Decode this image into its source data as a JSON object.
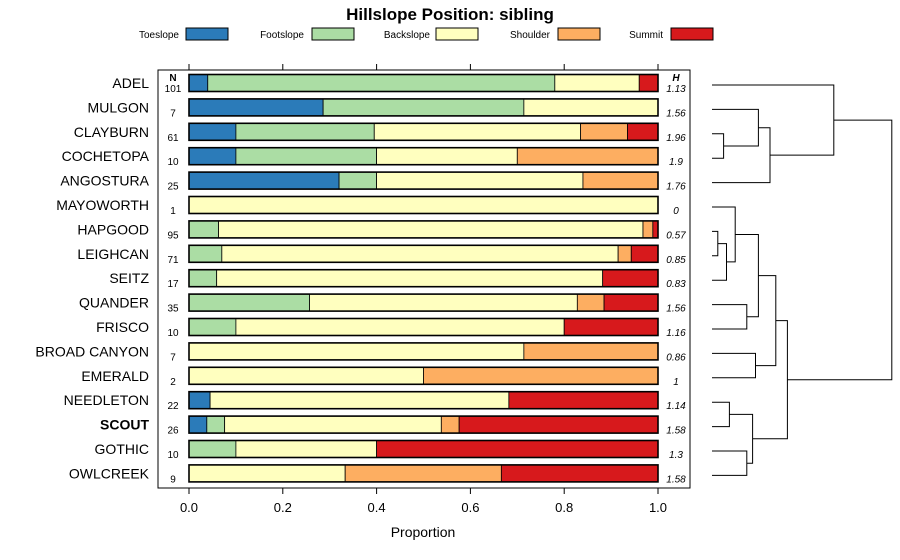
{
  "chart_data": {
    "type": "bar",
    "orientation": "horizontal",
    "stacked": true,
    "title": "Hillslope Position: sibling",
    "xlabel": "Proportion",
    "xlim": [
      0,
      1
    ],
    "xticks": [
      "0.0",
      "0.2",
      "0.4",
      "0.6",
      "0.8",
      "1.0"
    ],
    "legend_position": "top",
    "n_header": "N",
    "h_header": "H",
    "series": [
      {
        "name": "Toeslope",
        "color": "#2B7BB9"
      },
      {
        "name": "Footslope",
        "color": "#ABDDA4"
      },
      {
        "name": "Backslope",
        "color": "#FFFFBF"
      },
      {
        "name": "Shoulder",
        "color": "#FDAE61"
      },
      {
        "name": "Summit",
        "color": "#D7191C"
      }
    ],
    "rows": [
      {
        "name": "ADEL",
        "n": "101",
        "h": "1.13",
        "values": [
          0.04,
          0.74,
          0.18,
          0.0,
          0.04
        ]
      },
      {
        "name": "MULGON",
        "n": "7",
        "h": "1.56",
        "values": [
          0.286,
          0.428,
          0.286,
          0.0,
          0.0
        ]
      },
      {
        "name": "CLAYBURN",
        "n": "61",
        "h": "1.96",
        "values": [
          0.1,
          0.295,
          0.44,
          0.1,
          0.065
        ]
      },
      {
        "name": "COCHETOPA",
        "n": "10",
        "h": "1.9",
        "values": [
          0.1,
          0.3,
          0.3,
          0.3,
          0.0
        ]
      },
      {
        "name": "ANGOSTURA",
        "n": "25",
        "h": "1.76",
        "values": [
          0.32,
          0.08,
          0.44,
          0.16,
          0.0
        ]
      },
      {
        "name": "MAYOWORTH",
        "n": "1",
        "h": "0",
        "values": [
          0.0,
          0.0,
          1.0,
          0.0,
          0.0
        ]
      },
      {
        "name": "HAPGOOD",
        "n": "95",
        "h": "0.57",
        "values": [
          0.0,
          0.063,
          0.905,
          0.021,
          0.011
        ]
      },
      {
        "name": "LEIGHCAN",
        "n": "71",
        "h": "0.85",
        "values": [
          0.0,
          0.07,
          0.845,
          0.028,
          0.057
        ]
      },
      {
        "name": "SEITZ",
        "n": "17",
        "h": "0.83",
        "values": [
          0.0,
          0.059,
          0.823,
          0.0,
          0.118
        ]
      },
      {
        "name": "QUANDER",
        "n": "35",
        "h": "1.56",
        "values": [
          0.0,
          0.257,
          0.571,
          0.057,
          0.115
        ]
      },
      {
        "name": "FRISCO",
        "n": "10",
        "h": "1.16",
        "values": [
          0.0,
          0.1,
          0.7,
          0.0,
          0.2
        ]
      },
      {
        "name": "BROAD CANYON",
        "n": "7",
        "h": "0.86",
        "values": [
          0.0,
          0.0,
          0.714,
          0.286,
          0.0
        ]
      },
      {
        "name": "EMERALD",
        "n": "2",
        "h": "1",
        "values": [
          0.0,
          0.0,
          0.5,
          0.5,
          0.0
        ]
      },
      {
        "name": "NEEDLETON",
        "n": "22",
        "h": "1.14",
        "values": [
          0.045,
          0.0,
          0.637,
          0.0,
          0.318
        ]
      },
      {
        "name": "SCOUT",
        "n": "26",
        "h": "1.58",
        "bold": true,
        "values": [
          0.038,
          0.038,
          0.462,
          0.038,
          0.424
        ]
      },
      {
        "name": "GOTHIC",
        "n": "10",
        "h": "1.3",
        "values": [
          0.0,
          0.1,
          0.3,
          0.0,
          0.6
        ]
      },
      {
        "name": "OWLCREEK",
        "n": "9",
        "h": "1.58",
        "values": [
          0.0,
          0.0,
          0.333,
          0.333,
          0.334
        ]
      }
    ],
    "dendrogram": {
      "type": "hierarchical-cluster",
      "leaf_order": [
        "ADEL",
        "MULGON",
        "CLAYBURN",
        "COCHETOPA",
        "ANGOSTURA",
        "MAYOWORTH",
        "HAPGOOD",
        "LEIGHCAN",
        "SEITZ",
        "QUANDER",
        "FRISCO",
        "BROAD CANYON",
        "EMERALD",
        "NEEDLETON",
        "SCOUT",
        "GOTHIC",
        "OWLCREEK"
      ],
      "merges": [
        {
          "a": "CLAYBURN",
          "b": "COCHETOPA",
          "height": 0.02
        },
        {
          "a": "HAPGOOD",
          "b": "LEIGHCAN",
          "height": 0.01
        },
        {
          "a": "NEEDLETON",
          "b": "SCOUT",
          "height": 0.03
        },
        {
          "a": "GOTHIC",
          "b": "OWLCREEK",
          "height": 0.06
        },
        {
          "a": "QUANDER",
          "b": "FRISCO",
          "height": 0.06
        },
        {
          "a": "HAPGOOD+LEIGHCAN",
          "b": "SEITZ",
          "height": 0.025
        },
        {
          "a": "MULGON",
          "b": "CLAYBURN+COCHETOPA",
          "height": 0.08
        },
        {
          "a": "MULGON+CLAYBURN+COCHETOPA",
          "b": "ANGOSTURA",
          "height": 0.1
        },
        {
          "a": "MAYOWORTH",
          "b": "HAPGOOD+LEIGHCAN+SEITZ",
          "height": 0.04
        },
        {
          "a": "BROAD CANYON",
          "b": "EMERALD",
          "height": 0.075
        },
        {
          "a": "NEEDLETON+SCOUT",
          "b": "GOTHIC+OWLCREEK",
          "height": 0.07
        },
        {
          "a": "MAYOWORTH+HAPGOOD+LEIGHCAN+SEITZ",
          "b": "QUANDER+FRISCO",
          "height": 0.08
        },
        {
          "a": "ADEL",
          "b": "MULGON+CLAYBURN+COCHETOPA+ANGOSTURA",
          "height": 0.21
        },
        {
          "a": "MAYOWORTH..FRISCO",
          "b": "BROAD CANYON+EMERALD",
          "height": 0.11
        },
        {
          "a": "MAYOWORTH..EMERALD",
          "b": "NEEDLETON..OWLCREEK",
          "height": 0.13
        },
        {
          "a": "ADEL..ANGOSTURA",
          "b": "MAYOWORTH..OWLCREEK",
          "height": 0.31
        }
      ]
    }
  }
}
